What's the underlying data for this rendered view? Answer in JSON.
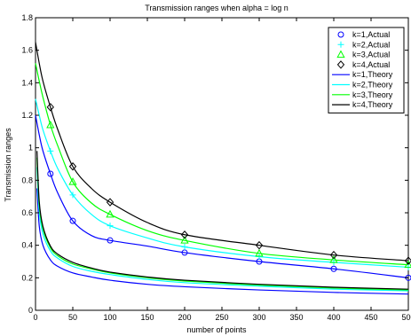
{
  "chart_data": {
    "type": "line",
    "title": "Transmission ranges when alpha = log n",
    "xlabel": "number of points",
    "ylabel": "Transmission ranges",
    "xlim": [
      0,
      500
    ],
    "ylim": [
      0,
      1.8
    ],
    "xticks": [
      "0",
      "50",
      "100",
      "150",
      "200",
      "250",
      "300",
      "350",
      "400",
      "450",
      "500"
    ],
    "yticks": [
      "0",
      "0.2",
      "0.4",
      "0.6",
      "0.8",
      "1",
      "1.2",
      "1.4",
      "1.6",
      "1.8"
    ],
    "grid": false,
    "legend_position": "top-right",
    "colors": {
      "blue": "#0000ff",
      "cyan": "#00ffff",
      "green": "#00ff00",
      "black": "#000000"
    },
    "series": [
      {
        "name": "k=1,Actual",
        "color": "#0000ff",
        "marker": "circle",
        "x": [
          20,
          50,
          100,
          200,
          300,
          400,
          500
        ],
        "y": [
          0.84,
          0.55,
          0.43,
          0.355,
          0.3,
          0.255,
          0.2
        ]
      },
      {
        "name": "k=2,Actual",
        "color": "#00ffff",
        "marker": "plus",
        "x": [
          20,
          50,
          100,
          200,
          300,
          400,
          500
        ],
        "y": [
          0.98,
          0.71,
          0.52,
          0.39,
          0.33,
          0.295,
          0.265
        ]
      },
      {
        "name": "k=3,Actual",
        "color": "#00ff00",
        "marker": "triangle",
        "x": [
          20,
          50,
          100,
          200,
          300,
          400,
          500
        ],
        "y": [
          1.14,
          0.79,
          0.59,
          0.43,
          0.35,
          0.31,
          0.28
        ]
      },
      {
        "name": "k=4,Actual",
        "color": "#000000",
        "marker": "diamond",
        "x": [
          20,
          50,
          100,
          200,
          300,
          400,
          500
        ],
        "y": [
          1.25,
          0.885,
          0.665,
          0.465,
          0.4,
          0.34,
          0.305
        ]
      },
      {
        "name": "k=1,Theory",
        "color": "#0000ff",
        "marker": "none",
        "x": [
          2,
          5,
          10,
          20,
          30,
          50,
          75,
          100,
          150,
          200,
          300,
          400,
          500
        ],
        "y": [
          0.75,
          0.52,
          0.4,
          0.31,
          0.27,
          0.23,
          0.205,
          0.185,
          0.16,
          0.145,
          0.125,
          0.11,
          0.1
        ]
      },
      {
        "name": "k=2,Theory",
        "color": "#00ffff",
        "marker": "none",
        "x": [
          2,
          5,
          10,
          20,
          30,
          50,
          75,
          100,
          150,
          200,
          300,
          400,
          500
        ],
        "y": [
          0.88,
          0.61,
          0.47,
          0.365,
          0.32,
          0.27,
          0.24,
          0.22,
          0.19,
          0.17,
          0.148,
          0.13,
          0.12
        ]
      },
      {
        "name": "k=3,Theory",
        "color": "#00ff00",
        "marker": "none",
        "x": [
          2,
          5,
          10,
          20,
          30,
          50,
          75,
          100,
          150,
          200,
          300,
          400,
          500
        ],
        "y": [
          0.94,
          0.65,
          0.5,
          0.385,
          0.335,
          0.285,
          0.255,
          0.23,
          0.2,
          0.18,
          0.155,
          0.137,
          0.125
        ]
      },
      {
        "name": "k=4,Theory",
        "color": "#000000",
        "marker": "none",
        "x": [
          2,
          5,
          10,
          20,
          30,
          50,
          75,
          100,
          150,
          200,
          300,
          400,
          500
        ],
        "y": [
          0.98,
          0.67,
          0.515,
          0.395,
          0.345,
          0.295,
          0.26,
          0.235,
          0.205,
          0.185,
          0.16,
          0.142,
          0.13
        ]
      }
    ],
    "fit_curves": [
      {
        "series": "k=1,Actual",
        "color": "#0000ff",
        "x": [
          0,
          5,
          10,
          20,
          30,
          50,
          75,
          100,
          150,
          200,
          300,
          400,
          500
        ],
        "y": [
          1.2,
          1.08,
          0.98,
          0.84,
          0.72,
          0.55,
          0.46,
          0.43,
          0.395,
          0.355,
          0.3,
          0.255,
          0.2
        ]
      },
      {
        "series": "k=2,Actual",
        "color": "#00ffff",
        "x": [
          0,
          5,
          10,
          20,
          30,
          50,
          75,
          100,
          150,
          200,
          300,
          400,
          500
        ],
        "y": [
          1.3,
          1.2,
          1.11,
          0.98,
          0.87,
          0.71,
          0.59,
          0.52,
          0.445,
          0.39,
          0.33,
          0.295,
          0.265
        ]
      },
      {
        "series": "k=3,Actual",
        "color": "#00ff00",
        "x": [
          0,
          5,
          10,
          20,
          30,
          50,
          75,
          100,
          150,
          200,
          300,
          400,
          500
        ],
        "y": [
          1.52,
          1.41,
          1.31,
          1.14,
          1.01,
          0.79,
          0.66,
          0.59,
          0.49,
          0.43,
          0.35,
          0.31,
          0.28
        ]
      },
      {
        "series": "k=4,Actual",
        "color": "#000000",
        "x": [
          0,
          5,
          10,
          20,
          30,
          50,
          75,
          100,
          150,
          200,
          300,
          400,
          500
        ],
        "y": [
          1.65,
          1.52,
          1.41,
          1.25,
          1.11,
          0.885,
          0.75,
          0.665,
          0.54,
          0.465,
          0.4,
          0.34,
          0.305
        ]
      }
    ]
  }
}
